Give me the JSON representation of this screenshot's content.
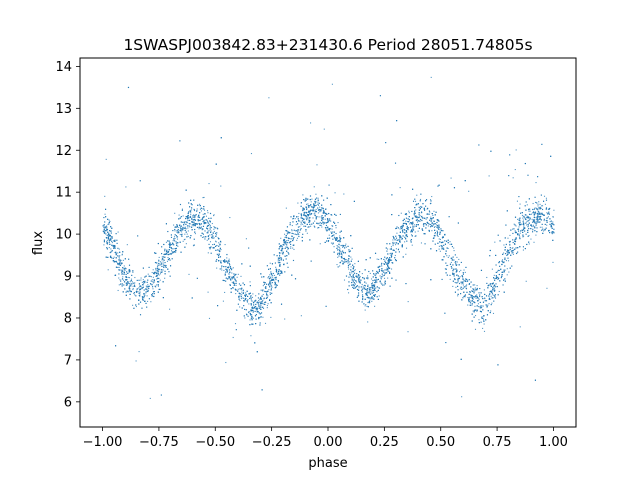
{
  "chart_data": {
    "type": "scatter",
    "title": "1SWASPJ003842.83+231430.6 Period 28051.74805s",
    "xlabel": "phase",
    "ylabel": "flux",
    "xlim": [
      -1.1,
      1.1
    ],
    "ylim": [
      5.4,
      14.2
    ],
    "grid": false,
    "legend": "none",
    "point_color": "#1f77b4",
    "x_ticks": [
      -1.0,
      -0.75,
      -0.5,
      -0.25,
      0.0,
      0.25,
      0.5,
      0.75,
      1.0
    ],
    "x_tick_labels": [
      "−1.00",
      "−0.75",
      "−0.50",
      "−0.25",
      "0.00",
      "0.25",
      "0.50",
      "0.75",
      "1.00"
    ],
    "y_ticks": [
      6,
      7,
      8,
      9,
      10,
      11,
      12,
      13,
      14
    ],
    "y_tick_labels": [
      "6",
      "7",
      "8",
      "9",
      "10",
      "11",
      "12",
      "13",
      "14"
    ],
    "series": [
      {
        "x": [
          -1.0,
          -0.95,
          -0.9,
          -0.85,
          -0.8,
          -0.75,
          -0.7,
          -0.65,
          -0.6,
          -0.55,
          -0.5,
          -0.45,
          -0.4,
          -0.35,
          -0.32,
          -0.3,
          -0.25,
          -0.2,
          -0.15,
          -0.1,
          -0.06,
          -0.05,
          0.0,
          0.05,
          0.1,
          0.15,
          0.18,
          0.2,
          0.25,
          0.3,
          0.35,
          0.4,
          0.42,
          0.45,
          0.5,
          0.55,
          0.6,
          0.65,
          0.68,
          0.7,
          0.75,
          0.8,
          0.85,
          0.9,
          0.94,
          0.95,
          1.0
        ],
        "y": [
          10.2,
          9.6,
          9.0,
          8.6,
          8.7,
          9.1,
          9.7,
          10.2,
          10.4,
          10.3,
          9.8,
          9.2,
          8.7,
          8.3,
          8.2,
          8.3,
          8.9,
          9.6,
          10.1,
          10.5,
          10.6,
          10.55,
          10.3,
          9.7,
          9.1,
          8.7,
          8.65,
          8.7,
          9.2,
          9.8,
          10.2,
          10.4,
          10.45,
          10.35,
          9.9,
          9.3,
          8.8,
          8.4,
          8.3,
          8.35,
          8.9,
          9.6,
          10.1,
          10.4,
          10.5,
          10.5,
          10.3
        ]
      }
    ]
  }
}
